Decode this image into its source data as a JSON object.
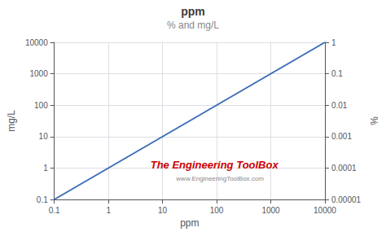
{
  "chart_data": {
    "type": "line",
    "title": "ppm",
    "subtitle": "% and mg/L",
    "xlabel": "ppm",
    "ylabel": "mg/L",
    "y2label": "%",
    "log": true,
    "grid": true,
    "x": [
      0.1,
      10000
    ],
    "values": [
      0.1,
      10000
    ],
    "color": "#3b6cb7",
    "xlim": [
      0.1,
      10000
    ],
    "ylim": [
      0.1,
      10000
    ],
    "y2lim": [
      1e-05,
      1
    ],
    "xticks": [
      0.1,
      1,
      10,
      100,
      1000,
      10000
    ],
    "yticks": [
      0.1,
      1,
      10,
      100,
      1000,
      10000
    ],
    "y2ticks": [
      1e-05,
      0.0001,
      0.001,
      0.01,
      0.1,
      1
    ],
    "annotations": [
      {
        "text": "The Engineering ToolBox",
        "color": "#cc0000"
      },
      {
        "text": "www.EngineeringToolBox.com",
        "color": "#888888"
      }
    ]
  }
}
